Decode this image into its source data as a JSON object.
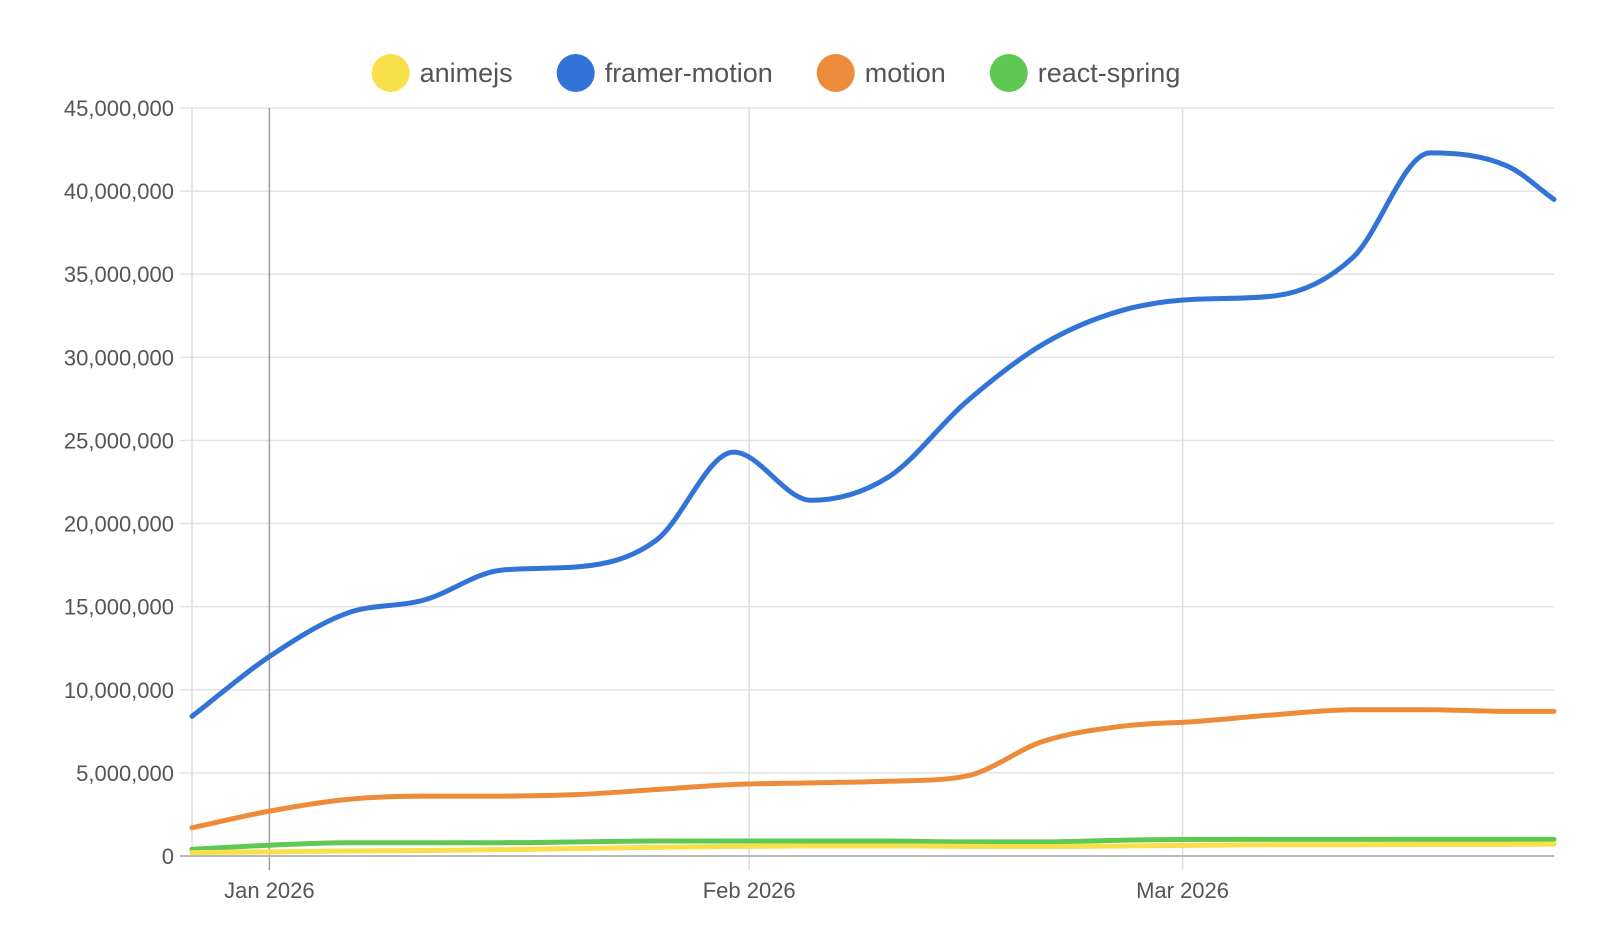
{
  "chart_data": {
    "type": "line",
    "title": "",
    "xlabel": "",
    "ylabel": "",
    "legend_position": "top",
    "grid": true,
    "x_range": [
      "2025-12-27",
      "2026-03-25"
    ],
    "ylim": [
      0,
      45000000
    ],
    "y_ticks": [
      0,
      5000000,
      10000000,
      15000000,
      20000000,
      25000000,
      30000000,
      35000000,
      40000000,
      45000000
    ],
    "y_tick_labels": [
      "0",
      "5,000,000",
      "10,000,000",
      "15,000,000",
      "20,000,000",
      "25,000,000",
      "30,000,000",
      "35,000,000",
      "40,000,000",
      "45,000,000"
    ],
    "x_ticks": [
      {
        "date": "2026-01-01",
        "label": "Jan 2026",
        "strong": true
      },
      {
        "date": "2026-02-01",
        "label": "Feb 2026",
        "strong": false
      },
      {
        "date": "2026-03-01",
        "label": "Mar 2026",
        "strong": false
      }
    ],
    "x": [
      "2025-12-27",
      "2026-01-01",
      "2026-01-06",
      "2026-01-11",
      "2026-01-16",
      "2026-01-21",
      "2026-01-26",
      "2026-01-31",
      "2026-02-05",
      "2026-02-10",
      "2026-02-15",
      "2026-02-20",
      "2026-02-25",
      "2026-03-02",
      "2026-03-07",
      "2026-03-12",
      "2026-03-17",
      "2026-03-22",
      "2026-03-25"
    ],
    "series": [
      {
        "name": "animejs",
        "color": "#f9df4a",
        "values": [
          200000,
          250000,
          300000,
          330000,
          380000,
          450000,
          520000,
          580000,
          600000,
          600000,
          580000,
          570000,
          600000,
          650000,
          680000,
          680000,
          700000,
          700000,
          720000
        ]
      },
      {
        "name": "framer-motion",
        "color": "#3273d8",
        "values": [
          8400000,
          12000000,
          14600000,
          15400000,
          17200000,
          17400000,
          19000000,
          24300000,
          21400000,
          22800000,
          27300000,
          30800000,
          32800000,
          33500000,
          33700000,
          36000000,
          42300000,
          41500000,
          39500000
        ]
      },
      {
        "name": "motion",
        "color": "#ee8b3a",
        "values": [
          1700000,
          2700000,
          3400000,
          3600000,
          3600000,
          3700000,
          4000000,
          4300000,
          4400000,
          4500000,
          4800000,
          6900000,
          7800000,
          8100000,
          8500000,
          8800000,
          8800000,
          8700000,
          8700000
        ]
      },
      {
        "name": "react-spring",
        "color": "#5fc852",
        "values": [
          400000,
          650000,
          800000,
          800000,
          800000,
          850000,
          900000,
          900000,
          900000,
          900000,
          850000,
          850000,
          950000,
          1000000,
          1000000,
          1000000,
          1000000,
          1000000,
          1000000
        ]
      }
    ]
  }
}
